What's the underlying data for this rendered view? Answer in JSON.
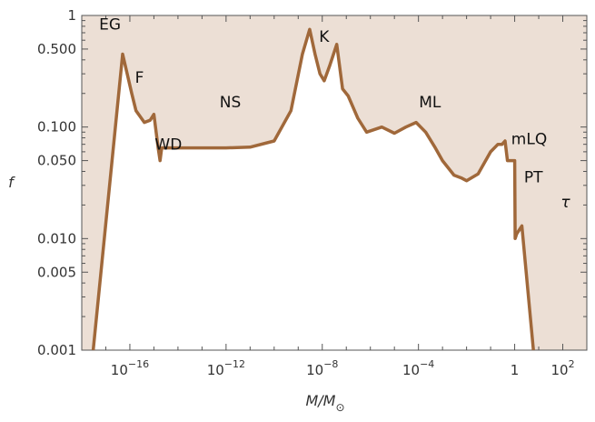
{
  "chart_data": {
    "type": "area",
    "title": "",
    "xlabel": "M/M",
    "xlabel_sub": "⊙",
    "ylabel": "f",
    "x_scale": "log",
    "y_scale": "log",
    "xlim": [
      1e-18,
      1000
    ],
    "ylim": [
      0.001,
      1
    ],
    "grid": false,
    "legend": "none",
    "x_ticks": [
      {
        "value": 1e-16,
        "mantissa": "10",
        "exponent": "−16"
      },
      {
        "value": 1e-12,
        "mantissa": "10",
        "exponent": "−12"
      },
      {
        "value": 1e-08,
        "mantissa": "10",
        "exponent": "−8"
      },
      {
        "value": 0.0001,
        "mantissa": "10",
        "exponent": "−4"
      },
      {
        "value": 1,
        "mantissa": "1",
        "exponent": ""
      },
      {
        "value": 100,
        "mantissa": "10",
        "exponent": "2"
      }
    ],
    "y_ticks": [
      {
        "value": 1,
        "label": "1"
      },
      {
        "value": 0.5,
        "label": "0.500"
      },
      {
        "value": 0.1,
        "label": "0.100"
      },
      {
        "value": 0.05,
        "label": "0.050"
      },
      {
        "value": 0.01,
        "label": "0.010"
      },
      {
        "value": 0.005,
        "label": "0.005"
      },
      {
        "value": 0.001,
        "label": "0.001"
      }
    ],
    "colors": {
      "line": "#a0683a",
      "fill": "#ecdfd5"
    },
    "series": [
      {
        "x": [
          3e-18,
          5e-17,
          1.2e-16,
          1.8e-16,
          4e-16,
          7e-16,
          1e-15,
          1.5e-15,
          1.8e-15,
          2.1e-15,
          1e-14,
          1e-13,
          1e-12,
          1e-11,
          1e-10,
          5e-10,
          1.5e-09,
          3e-09,
          5e-09,
          8e-09,
          1.2e-08,
          2e-08,
          4e-08,
          7e-08,
          1.2e-07,
          3e-07,
          7e-07,
          3e-06,
          1e-05,
          3e-05,
          8e-05,
          0.0002,
          0.0005,
          0.001,
          0.003,
          0.006,
          0.01,
          0.03,
          0.1,
          0.2,
          0.3,
          0.4,
          0.5,
          1.0,
          1.05,
          1.2,
          2.0,
          3.5,
          6.0
        ],
        "y": [
          0.001,
          0.45,
          0.2,
          0.14,
          0.11,
          0.115,
          0.13,
          0.065,
          0.05,
          0.065,
          0.065,
          0.065,
          0.065,
          0.066,
          0.075,
          0.14,
          0.45,
          0.75,
          0.45,
          0.3,
          0.26,
          0.35,
          0.55,
          0.22,
          0.19,
          0.12,
          0.09,
          0.1,
          0.088,
          0.1,
          0.11,
          0.09,
          0.065,
          0.05,
          0.037,
          0.035,
          0.033,
          0.038,
          0.06,
          0.07,
          0.07,
          0.075,
          0.05,
          0.05,
          0.01,
          0.011,
          0.013,
          0.0035,
          0.001
        ]
      }
    ],
    "annotations": [
      {
        "text": "EG",
        "x": 1.5e-17,
        "y": 0.75
      },
      {
        "text": "F",
        "x": 2.5e-16,
        "y": 0.25
      },
      {
        "text": "WD",
        "x": 4e-15,
        "y": 0.063
      },
      {
        "text": "NS",
        "x": 1.5e-12,
        "y": 0.15
      },
      {
        "text": "K",
        "x": 1.2e-08,
        "y": 0.58
      },
      {
        "text": "ML",
        "x": 0.0003,
        "y": 0.15
      },
      {
        "text": "mLQ",
        "x": 4,
        "y": 0.07
      },
      {
        "text": "PT",
        "x": 6,
        "y": 0.032
      },
      {
        "text": "τ",
        "x": 130,
        "y": 0.019
      }
    ]
  }
}
